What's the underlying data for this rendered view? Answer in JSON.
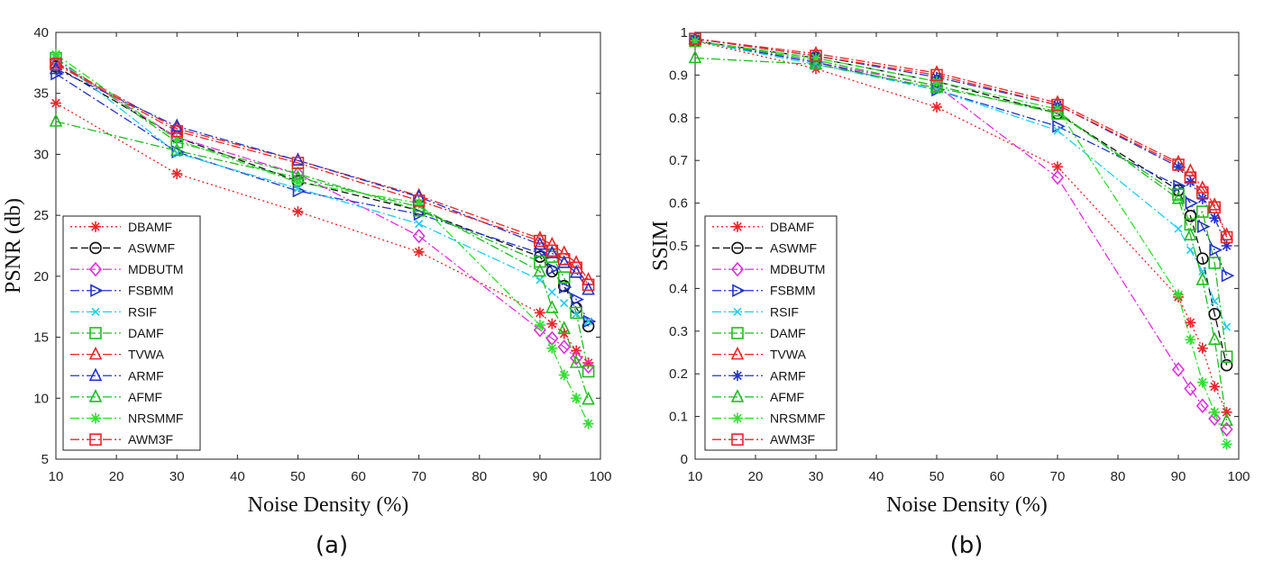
{
  "chart_data": [
    {
      "type": "line",
      "caption": "(a)",
      "xlabel": "Noise Density (%)",
      "ylabel": "PSNR (db)",
      "xlim": [
        10,
        100
      ],
      "ylim": [
        5,
        40
      ],
      "xticks": [
        10,
        20,
        30,
        40,
        50,
        60,
        70,
        80,
        90,
        100
      ],
      "yticks": [
        5,
        10,
        15,
        20,
        25,
        30,
        35,
        40
      ],
      "grid": false,
      "legend": "bottom-left",
      "x": [
        10,
        30,
        50,
        70,
        90,
        92,
        94,
        96,
        98
      ],
      "series": [
        {
          "name": "DBAMF",
          "color": "#e8262a",
          "marker": "star",
          "dash": "dot",
          "values": [
            34.2,
            28.4,
            25.3,
            22.0,
            17.0,
            16.1,
            15.3,
            13.9,
            12.9
          ]
        },
        {
          "name": "ASWMF",
          "color": "#111111",
          "marker": "circle",
          "dash": "dash",
          "values": [
            37.2,
            31.4,
            27.8,
            25.4,
            21.6,
            20.4,
            19.2,
            17.4,
            15.9
          ]
        },
        {
          "name": "MDBUTM",
          "color": "#e030e0",
          "marker": "diamond",
          "dash": "dashdot",
          "values": [
            37.6,
            31.4,
            28.4,
            23.3,
            15.6,
            14.9,
            14.2,
            13.3,
            12.6
          ]
        },
        {
          "name": "FSBMM",
          "color": "#2233cc",
          "marker": "triright",
          "dash": "dashdot",
          "values": [
            36.6,
            30.2,
            27.0,
            25.1,
            21.9,
            20.6,
            19.1,
            18.1,
            16.3
          ]
        },
        {
          "name": "RSIF",
          "color": "#22ccee",
          "marker": "x",
          "dash": "dashdot",
          "values": [
            37.9,
            30.1,
            27.2,
            24.3,
            19.7,
            18.7,
            17.8,
            16.9,
            16.3
          ]
        },
        {
          "name": "DAMF",
          "color": "#22bb22",
          "marker": "square",
          "dash": "dashdot",
          "values": [
            37.9,
            31.0,
            28.4,
            25.4,
            21.2,
            21.6,
            19.9,
            17.0,
            12.2
          ]
        },
        {
          "name": "TVWA",
          "color": "#e8262a",
          "marker": "triup",
          "dash": "dashdot",
          "values": [
            37.5,
            32.1,
            29.5,
            26.6,
            23.1,
            22.6,
            21.9,
            21.1,
            19.7
          ]
        },
        {
          "name": "ARMF",
          "color": "#2233cc",
          "marker": "triup",
          "dash": "dashdot",
          "values": [
            37.0,
            32.3,
            29.5,
            26.5,
            22.6,
            21.9,
            21.1,
            20.3,
            18.9
          ]
        },
        {
          "name": "AFMF",
          "color": "#22bb22",
          "marker": "triup",
          "dash": "dashdot",
          "values": [
            32.7,
            30.3,
            28.1,
            25.7,
            20.4,
            17.4,
            15.7,
            12.9,
            9.9
          ]
        },
        {
          "name": "NRSMMF",
          "color": "#33dd33",
          "marker": "star",
          "dash": "dashdot",
          "values": [
            38.2,
            31.2,
            27.7,
            26.0,
            16.0,
            14.1,
            11.9,
            10.0,
            7.9
          ]
        },
        {
          "name": "AWM3F",
          "color": "#e8262a",
          "marker": "square",
          "dash": "dashdot",
          "values": [
            37.4,
            31.9,
            29.3,
            26.2,
            22.9,
            22.1,
            21.4,
            20.7,
            19.3
          ]
        }
      ]
    },
    {
      "type": "line",
      "caption": "(b)",
      "xlabel": "Noise Density (%)",
      "ylabel": "SSIM",
      "xlim": [
        10,
        100
      ],
      "ylim": [
        0,
        1
      ],
      "xticks": [
        10,
        20,
        30,
        40,
        50,
        60,
        70,
        80,
        90,
        100
      ],
      "yticks": [
        0,
        0.1,
        0.2,
        0.3,
        0.4,
        0.5,
        0.6,
        0.7,
        0.8,
        0.9,
        1
      ],
      "grid": false,
      "legend": "bottom-left",
      "x": [
        10,
        30,
        50,
        70,
        90,
        92,
        94,
        96,
        98
      ],
      "series": [
        {
          "name": "DBAMF",
          "color": "#e8262a",
          "marker": "star",
          "dash": "dot",
          "values": [
            0.98,
            0.915,
            0.825,
            0.685,
            0.38,
            0.32,
            0.26,
            0.17,
            0.11
          ]
        },
        {
          "name": "ASWMF",
          "color": "#111111",
          "marker": "circle",
          "dash": "dash",
          "values": [
            0.98,
            0.94,
            0.885,
            0.81,
            0.63,
            0.57,
            0.47,
            0.34,
            0.22
          ]
        },
        {
          "name": "MDBUTM",
          "color": "#e030e0",
          "marker": "diamond",
          "dash": "dashdot",
          "values": [
            0.98,
            0.93,
            0.875,
            0.66,
            0.21,
            0.165,
            0.125,
            0.095,
            0.07
          ]
        },
        {
          "name": "FSBMM",
          "color": "#2233cc",
          "marker": "triright",
          "dash": "dashdot",
          "values": [
            0.98,
            0.93,
            0.865,
            0.78,
            0.64,
            0.6,
            0.545,
            0.49,
            0.43
          ]
        },
        {
          "name": "RSIF",
          "color": "#22ccee",
          "marker": "x",
          "dash": "dashdot",
          "values": [
            0.98,
            0.925,
            0.865,
            0.77,
            0.54,
            0.49,
            0.44,
            0.37,
            0.31
          ]
        },
        {
          "name": "DAMF",
          "color": "#22bb22",
          "marker": "square",
          "dash": "dashdot",
          "values": [
            0.98,
            0.935,
            0.875,
            0.81,
            0.62,
            0.55,
            0.58,
            0.46,
            0.24
          ]
        },
        {
          "name": "TVWA",
          "color": "#e8262a",
          "marker": "triup",
          "dash": "dashdot",
          "values": [
            0.985,
            0.95,
            0.905,
            0.835,
            0.695,
            0.675,
            0.635,
            0.595,
            0.525
          ]
        },
        {
          "name": "ARMF",
          "color": "#2233cc",
          "marker": "star",
          "dash": "dashdot",
          "values": [
            0.985,
            0.945,
            0.895,
            0.83,
            0.685,
            0.65,
            0.61,
            0.565,
            0.5
          ]
        },
        {
          "name": "AFMF",
          "color": "#22bb22",
          "marker": "triup",
          "dash": "dashdot",
          "values": [
            0.94,
            0.925,
            0.87,
            0.815,
            0.61,
            0.525,
            0.42,
            0.28,
            0.09
          ]
        },
        {
          "name": "NRSMMF",
          "color": "#33dd33",
          "marker": "star",
          "dash": "dashdot",
          "values": [
            0.98,
            0.94,
            0.885,
            0.82,
            0.385,
            0.28,
            0.18,
            0.11,
            0.035
          ]
        },
        {
          "name": "AWM3F",
          "color": "#e8262a",
          "marker": "square",
          "dash": "dashdot",
          "values": [
            0.985,
            0.945,
            0.9,
            0.83,
            0.69,
            0.66,
            0.625,
            0.59,
            0.52
          ]
        }
      ]
    }
  ]
}
